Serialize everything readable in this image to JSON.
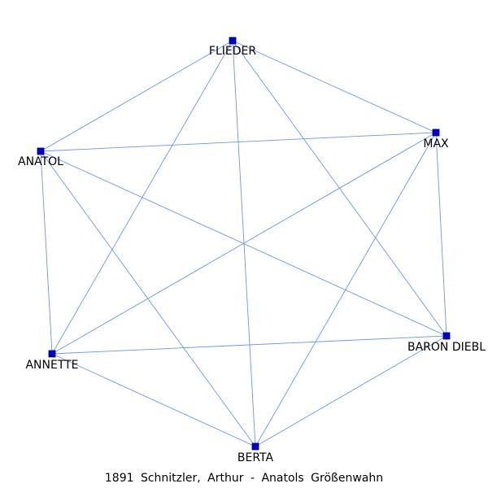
{
  "graph": {
    "nodes": [
      {
        "id": "FLIEDER",
        "label": "FLIEDER"
      },
      {
        "id": "MAX",
        "label": "MAX"
      },
      {
        "id": "ANATOL",
        "label": "ANATOL"
      },
      {
        "id": "ANNETTE",
        "label": "ANNETTE"
      },
      {
        "id": "BARON DIEBL",
        "label": "BARON DIEBL"
      },
      {
        "id": "BERTA",
        "label": "BERTA"
      }
    ],
    "edges": [
      [
        "FLIEDER",
        "MAX"
      ],
      [
        "FLIEDER",
        "ANATOL"
      ],
      [
        "FLIEDER",
        "ANNETTE"
      ],
      [
        "FLIEDER",
        "BARON DIEBL"
      ],
      [
        "FLIEDER",
        "BERTA"
      ],
      [
        "MAX",
        "ANATOL"
      ],
      [
        "MAX",
        "ANNETTE"
      ],
      [
        "MAX",
        "BARON DIEBL"
      ],
      [
        "MAX",
        "BERTA"
      ],
      [
        "ANATOL",
        "ANNETTE"
      ],
      [
        "ANATOL",
        "BARON DIEBL"
      ],
      [
        "ANATOL",
        "BERTA"
      ],
      [
        "ANNETTE",
        "BARON DIEBL"
      ],
      [
        "ANNETTE",
        "BERTA"
      ],
      [
        "BARON DIEBL",
        "BERTA"
      ]
    ],
    "colors": {
      "edge": "#6a97ea",
      "node": "#0000cc"
    }
  },
  "caption": "1891 Schnitzler, Arthur - Anatols Größenwahn"
}
